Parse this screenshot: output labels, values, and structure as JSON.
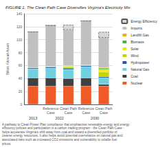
{
  "chart_data": {
    "type": "bar",
    "title": "FIGURE 1. The Clean Path Case Diversifies Virginia's Electricity Mix",
    "ylabel": "Billion Kilowatt-hours",
    "categories": [
      null,
      "Reference\nCase",
      "Clean Path\nCase",
      "Reference\nCase",
      "Clean Path\nCase"
    ],
    "category_groups": [
      "2013",
      "2022",
      "2022",
      "2030",
      "2030"
    ],
    "series": [
      {
        "name": "Nuclear",
        "color": "#f05a28",
        "values": [
          28,
          28,
          28,
          28,
          28
        ]
      },
      {
        "name": "Coal",
        "color": "#404040",
        "values": [
          13,
          13,
          12,
          13,
          3
        ]
      },
      {
        "name": "Natural Gas",
        "color": "#70d0e0",
        "values": [
          14,
          15,
          14,
          17,
          10
        ]
      },
      {
        "name": "Hydropower",
        "color": "#1f5ca6",
        "values": [
          2,
          2,
          2,
          2,
          2
        ]
      },
      {
        "name": "Wind",
        "color": "#c8d400",
        "values": [
          0,
          0,
          2,
          0,
          7
        ]
      },
      {
        "name": "Solar",
        "color": "#f5e800",
        "values": [
          0,
          0,
          1,
          0,
          4
        ]
      },
      {
        "name": "Biomass",
        "color": "#4caf50",
        "values": [
          0,
          1,
          1,
          1,
          2
        ]
      },
      {
        "name": "Landfill Gas",
        "color": "#f0b400",
        "values": [
          0,
          0,
          0,
          0,
          1
        ]
      },
      {
        "name": "Imports",
        "color": "#c0c0c0",
        "values": [
          55,
          63,
          55,
          68,
          46
        ]
      },
      {
        "name": "Energy Efficiency",
        "color": "#d8d8d8",
        "line_style": "dashed",
        "values": [
          0,
          0,
          8,
          0,
          9
        ]
      }
    ],
    "ylim": [
      0,
      140
    ],
    "yticks": [
      0,
      20,
      40,
      60,
      80,
      100,
      120,
      140
    ],
    "stacked": true,
    "grid": true,
    "legend": "right",
    "caption": "A pathway to Clean Power Plan compliance that emphasizes renewable energy and energy efficiency policies and participation in a carbon trading program - the Clean Path Case - helps accelerate Virginia's shift away from coal and toward a diversified portfolio of cleaner energy resources. It also helps avoid potential overreliance on natural gas and associated risks such as increased CO2 emissions and vulnerability to volatile fuel prices."
  }
}
